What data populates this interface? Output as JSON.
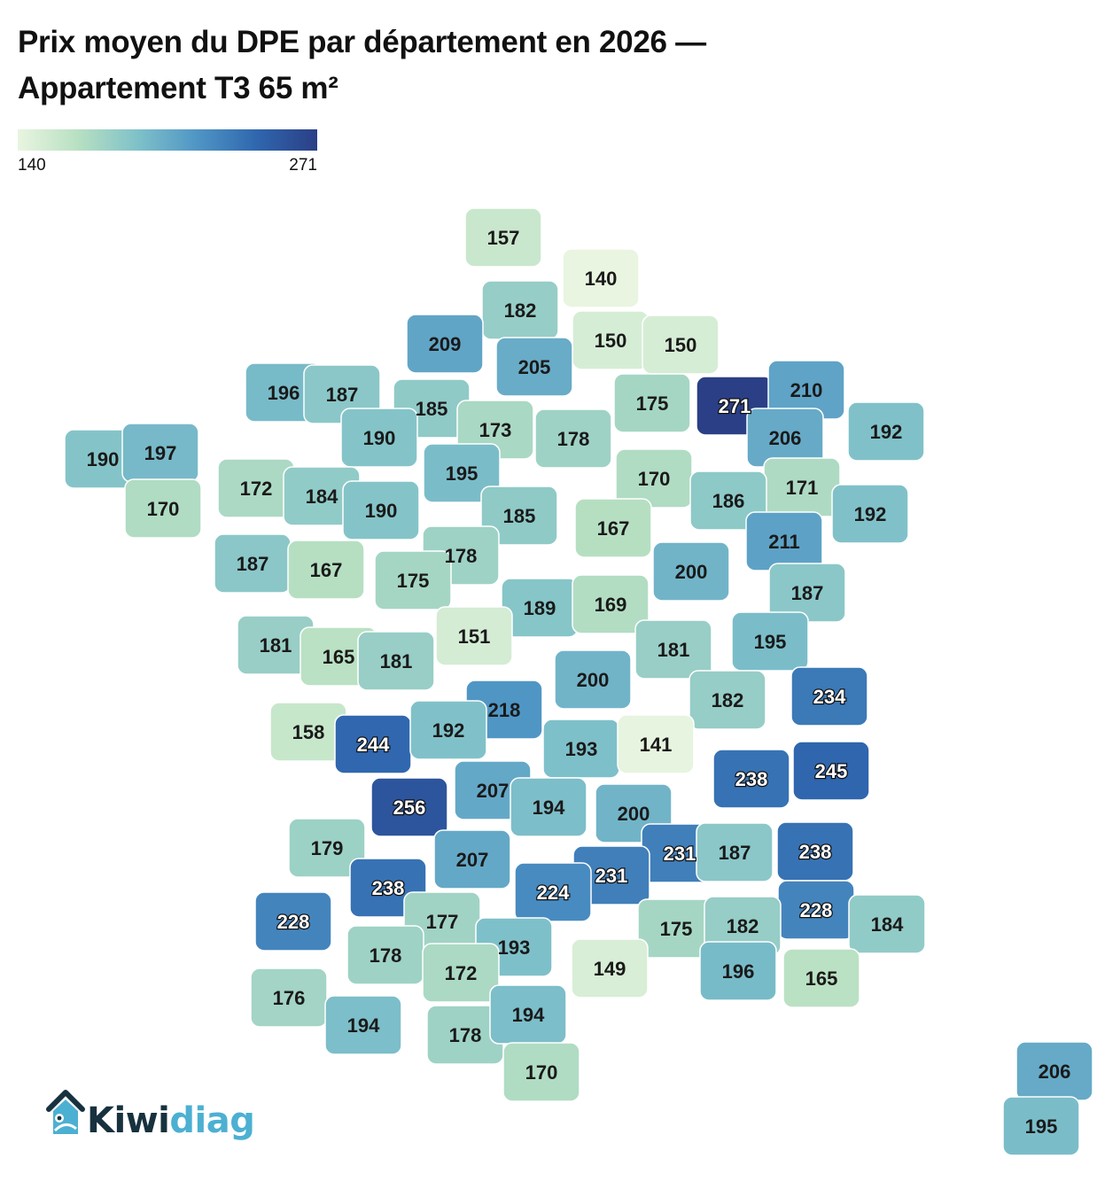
{
  "title": {
    "line1": "Prix moyen du DPE par département en 2026 —",
    "line2": "Appartement T3 65 m²"
  },
  "legend": {
    "min": "140",
    "max": "271",
    "colors": [
      "#e9f5e0",
      "#b8e0c2",
      "#7fc1c9",
      "#4f95c5",
      "#2f66ae",
      "#2b3f86"
    ]
  },
  "brand": {
    "kiwi": "Kiwi",
    "diag": "diag",
    "icon": "house-icon",
    "colors": {
      "dark": "#17313f",
      "light": "#4cb0d2"
    }
  },
  "map": {
    "outline_color": "#ffffff",
    "label_color_light": "#1a1a1a",
    "label_color_dark": "#ffffff"
  },
  "chart_data": {
    "type": "choropleth",
    "title": "Prix moyen du DPE par département en 2026 — Appartement T3 65 m²",
    "range": [
      140,
      271
    ],
    "values": [
      157,
      140,
      182,
      209,
      150,
      150,
      205,
      196,
      187,
      185,
      271,
      210,
      175,
      173,
      178,
      192,
      190,
      197,
      206,
      190,
      195,
      172,
      184,
      170,
      171,
      170,
      186,
      190,
      185,
      192,
      167,
      211,
      187,
      167,
      178,
      175,
      200,
      189,
      169,
      187,
      151,
      181,
      165,
      181,
      195,
      181,
      200,
      218,
      182,
      234,
      158,
      244,
      192,
      193,
      141,
      245,
      238,
      256,
      207,
      194,
      200,
      179,
      207,
      231,
      231,
      187,
      238,
      238,
      224,
      228,
      177,
      228,
      175,
      182,
      184,
      178,
      193,
      172,
      149,
      196,
      165,
      176,
      194,
      178,
      194,
      170,
      206,
      195
    ]
  }
}
